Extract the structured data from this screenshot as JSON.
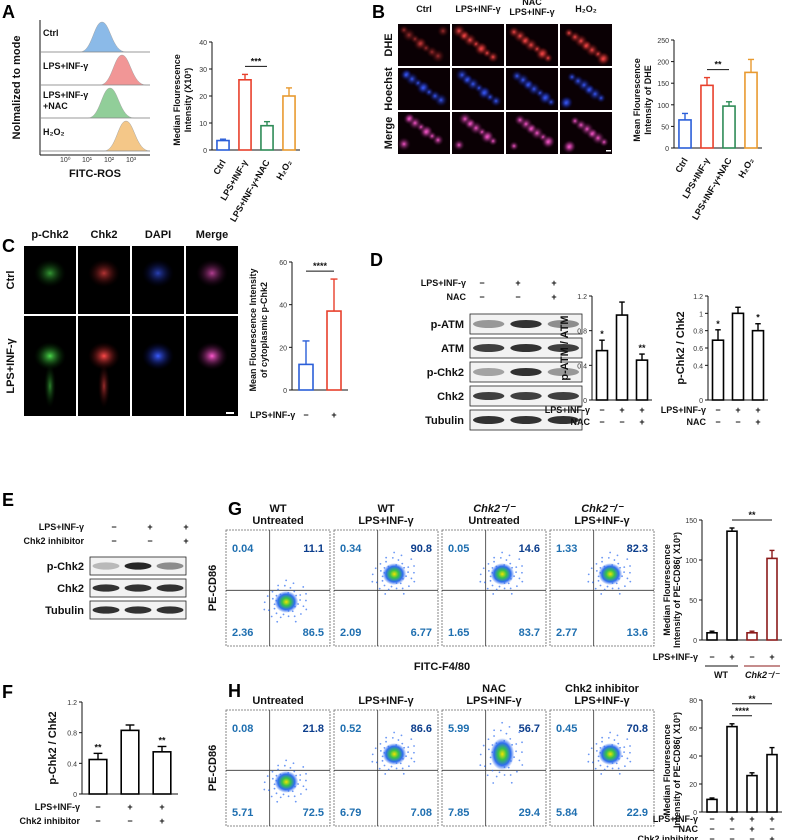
{
  "panel_letters": [
    "A",
    "B",
    "C",
    "D",
    "E",
    "F",
    "G",
    "H"
  ],
  "panelA": {
    "histogram_rows": [
      "Ctrl",
      "LPS+INF-γ",
      "LPS+INF-γ\n+NAC",
      "H₂O₂"
    ],
    "y_axis": "Nolmalized to mode",
    "x_axis": "FITC-ROS",
    "colors": [
      "#7fb3e6",
      "#f08b8b",
      "#86c98f",
      "#f3c27c"
    ],
    "bar_axis_label": [
      "Median Flourescence",
      "Intensity (X10³)"
    ]
  },
  "panelB": {
    "columns": [
      "Ctrl",
      "LPS+INF-γ",
      "NAC\nLPS+INF-γ",
      "H₂O₂"
    ],
    "rows": [
      "DHE",
      "Hoechst",
      "Merge"
    ],
    "bar_axis_label": [
      "Mean Flourescence",
      "Intensity of DHE"
    ]
  },
  "panelC": {
    "columns": [
      "p-Chk2",
      "Chk2",
      "DAPI",
      "Merge"
    ],
    "rows": [
      "Ctrl",
      "LPS+INF-γ"
    ],
    "bar_axis_label": [
      "Mean Flourescence Intensity",
      "of cytoplasmic p-Chk2"
    ]
  },
  "panelD": {
    "treatment_rows": [
      {
        "label": "LPS+INF-γ",
        "signs": [
          "−",
          "+",
          "+"
        ]
      },
      {
        "label": "NAC",
        "signs": [
          "−",
          "−",
          "+"
        ]
      }
    ],
    "blots": [
      "p-ATM",
      "ATM",
      "p-Chk2",
      "Chk2",
      "Tubulin"
    ],
    "chart_labels": [
      "p-ATM / ATM",
      "p-Chk2 / Chk2"
    ]
  },
  "panelE": {
    "treatment_rows": [
      {
        "label": "LPS+INF-γ",
        "signs": [
          "−",
          "+",
          "+"
        ]
      },
      {
        "label": "Chk2 inhibitor",
        "signs": [
          "−",
          "−",
          "+"
        ]
      }
    ],
    "blots": [
      "p-Chk2",
      "Chk2",
      "Tubulin"
    ]
  },
  "panelF": {
    "ylabel": "p-Chk2 / Chk2"
  },
  "panelG": {
    "plots": [
      {
        "title": [
          "WT",
          "Untreated"
        ],
        "q": [
          "0.04",
          "11.1",
          "2.36",
          "86.5"
        ]
      },
      {
        "title": [
          "WT",
          "LPS+INF-γ"
        ],
        "q": [
          "0.34",
          "90.8",
          "2.09",
          "6.77"
        ]
      },
      {
        "title": [
          "Chk2⁻/⁻",
          "Untreated"
        ],
        "q": [
          "0.05",
          "14.6",
          "1.65",
          "83.7"
        ]
      },
      {
        "title": [
          "Chk2⁻/⁻",
          "LPS+INF-γ"
        ],
        "q": [
          "1.33",
          "82.3",
          "2.77",
          "13.6"
        ]
      }
    ],
    "yaxis": "PE-CD86",
    "xaxis": "FITC-F4/80",
    "bar_axis_label": [
      "Median Flourescence",
      "Intensity of PE-CD86( X10³)"
    ],
    "groups": [
      "WT",
      "Chk2⁻/⁻"
    ]
  },
  "panelH": {
    "plots": [
      {
        "title": [
          "",
          "Untreated"
        ],
        "q": [
          "0.08",
          "21.8",
          "5.71",
          "72.5"
        ]
      },
      {
        "title": [
          "",
          "LPS+INF-γ"
        ],
        "q": [
          "0.52",
          "86.6",
          "6.79",
          "7.08"
        ]
      },
      {
        "title": [
          "NAC",
          "LPS+INF-γ"
        ],
        "q": [
          "5.99",
          "56.7",
          "7.85",
          "29.4"
        ]
      },
      {
        "title": [
          "Chk2 inhibitor",
          "LPS+INF-γ"
        ],
        "q": [
          "0.45",
          "70.8",
          "5.84",
          "22.9"
        ]
      }
    ],
    "yaxis": "PE-CD86",
    "xaxis": "FITC-F4/80",
    "bar_axis_label": [
      "Median Flourescence",
      "Intensity of PE-CD86( X10³)"
    ],
    "treatment_rows": [
      {
        "label": "LPS+INF-γ",
        "signs": [
          "−",
          "+",
          "+",
          "+"
        ]
      },
      {
        "label": "NAC",
        "signs": [
          "−",
          "−",
          "+",
          "−"
        ]
      },
      {
        "label": "Chk2 inhibitor",
        "signs": [
          "−",
          "−",
          "−",
          "+"
        ]
      }
    ]
  },
  "chart_data": [
    {
      "id": "A",
      "type": "bar",
      "categories": [
        "Ctrl",
        "LPS+INF-γ",
        "LPS+INF-γ+NAC",
        "H₂O₂"
      ],
      "values": [
        3.5,
        26,
        9,
        20
      ],
      "errors": [
        0.5,
        2,
        1.5,
        3
      ],
      "colors": [
        "#2b5fd9",
        "#e8402c",
        "#2e8b57",
        "#e89a30"
      ],
      "ylim": [
        0,
        40
      ],
      "yticks": [
        0,
        10,
        20,
        30,
        40
      ],
      "significance": [
        {
          "from": 1,
          "to": 2,
          "label": "***"
        }
      ],
      "ylabel": "Median Flourescence Intensity (X10³)"
    },
    {
      "id": "B",
      "type": "bar",
      "categories": [
        "Ctrl",
        "LPS+INF-γ",
        "LPS+INF-γ+NAC",
        "H₂O₂"
      ],
      "values": [
        65,
        145,
        97,
        175
      ],
      "errors": [
        15,
        18,
        10,
        30
      ],
      "colors": [
        "#2b5fd9",
        "#e8402c",
        "#2e8b57",
        "#e89a30"
      ],
      "ylim": [
        0,
        250
      ],
      "yticks": [
        0,
        50,
        100,
        150,
        200,
        250
      ],
      "significance": [
        {
          "from": 1,
          "to": 2,
          "label": "**"
        }
      ],
      "ylabel": "Mean Flourescence Intensity of DHE"
    },
    {
      "id": "C",
      "type": "bar",
      "categories": [
        "−",
        "+"
      ],
      "group_label": "LPS+INF-γ",
      "values": [
        12,
        37
      ],
      "errors": [
        11,
        15
      ],
      "colors": [
        "#2b5fd9",
        "#e8402c"
      ],
      "ylim": [
        0,
        60
      ],
      "yticks": [
        0,
        20,
        40,
        60
      ],
      "significance": [
        {
          "from": 0,
          "to": 1,
          "label": "****"
        }
      ],
      "ylabel": "Mean Flourescence Intensity of cytoplasmic p-Chk2"
    },
    {
      "id": "D1",
      "type": "bar",
      "values": [
        0.57,
        0.98,
        0.46
      ],
      "errors": [
        0.12,
        0.15,
        0.07
      ],
      "stars": [
        "*",
        "",
        "**"
      ],
      "ylim": [
        0,
        1.2
      ],
      "yticks": [
        0,
        0.4,
        0.8,
        1.2
      ],
      "ylabel": "p-ATM / ATM",
      "colors": [
        "#000",
        "#000",
        "#000"
      ]
    },
    {
      "id": "D2",
      "type": "bar",
      "values": [
        0.69,
        1.0,
        0.8
      ],
      "errors": [
        0.12,
        0.07,
        0.08
      ],
      "stars": [
        "*",
        "",
        "*"
      ],
      "ylim": [
        0.0,
        1.2
      ],
      "yticks": [
        0.0,
        0.4,
        0.6,
        0.8,
        1.0,
        1.2
      ],
      "ylabel": "p-Chk2 / Chk2",
      "colors": [
        "#000",
        "#000",
        "#000"
      ]
    },
    {
      "id": "F",
      "type": "bar",
      "values": [
        0.45,
        0.83,
        0.55
      ],
      "errors": [
        0.08,
        0.07,
        0.07
      ],
      "stars": [
        "**",
        "",
        "**"
      ],
      "ylim": [
        0,
        1.2
      ],
      "yticks": [
        0,
        0.4,
        0.8,
        1.2
      ],
      "ylabel": "p-Chk2 / Chk2",
      "colors": [
        "#000",
        "#000",
        "#000"
      ]
    },
    {
      "id": "G",
      "type": "bar",
      "values": [
        9,
        136,
        9,
        102
      ],
      "errors": [
        2,
        4,
        2,
        10
      ],
      "colors": [
        "#000",
        "#000",
        "#8b1a1a",
        "#8b1a1a"
      ],
      "ylim": [
        0,
        150
      ],
      "yticks": [
        0,
        50,
        100,
        150
      ],
      "significance": [
        {
          "from": 1,
          "to": 3,
          "label": "**"
        }
      ],
      "ylabel": "Median Flourescence Intensity of PE-CD86( X10³)"
    },
    {
      "id": "H",
      "type": "bar",
      "values": [
        9,
        61,
        26,
        41
      ],
      "errors": [
        1,
        2,
        2,
        5
      ],
      "colors": [
        "#000",
        "#000",
        "#000",
        "#000"
      ],
      "ylim": [
        0,
        80
      ],
      "yticks": [
        0,
        20,
        40,
        60,
        80
      ],
      "significance": [
        {
          "from": 1,
          "to": 2,
          "label": "****"
        },
        {
          "from": 1,
          "to": 3,
          "label": "**"
        }
      ],
      "ylabel": "Median Flourescence Intensity of PE-CD86( X10³)"
    }
  ]
}
